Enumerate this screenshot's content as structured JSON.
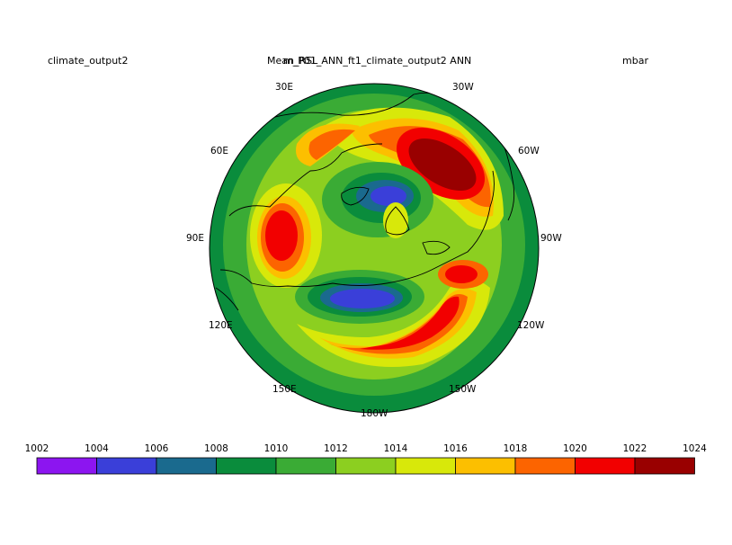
{
  "header": {
    "left": "climate_output2",
    "center_a": "Mean_RSL",
    "center_b": "m_P01_ANN_ft1_climate_output2  ANN",
    "right": "mbar"
  },
  "map": {
    "projection": "north polar stereographic",
    "longitude_labels": [
      {
        "text": "30E"
      },
      {
        "text": "30W"
      },
      {
        "text": "60E"
      },
      {
        "text": "60W"
      },
      {
        "text": "90E"
      },
      {
        "text": "90W"
      },
      {
        "text": "120E"
      },
      {
        "text": "120W"
      },
      {
        "text": "150E"
      },
      {
        "text": "150W"
      },
      {
        "text": "180W"
      }
    ]
  },
  "colorbar": {
    "ticks": [
      "1002",
      "1004",
      "1006",
      "1008",
      "1010",
      "1012",
      "1014",
      "1016",
      "1018",
      "1020",
      "1022",
      "1024"
    ],
    "colors": [
      "#8c15f0",
      "#3a3fd9",
      "#1a6a8e",
      "#0a8c3c",
      "#3aab35",
      "#8ccf20",
      "#d8e80a",
      "#fcbf00",
      "#fc6400",
      "#f20000",
      "#990000"
    ]
  },
  "colors": {
    "c1": "#8c15f0",
    "c2": "#3a3fd9",
    "c3": "#1a6a8e",
    "c4": "#0a8c3c",
    "c5": "#3aab35",
    "c6": "#8ccf20",
    "c7": "#d8e80a",
    "c8": "#fcbf00",
    "c9": "#fc6400",
    "c10": "#f20000",
    "c11": "#990000"
  }
}
